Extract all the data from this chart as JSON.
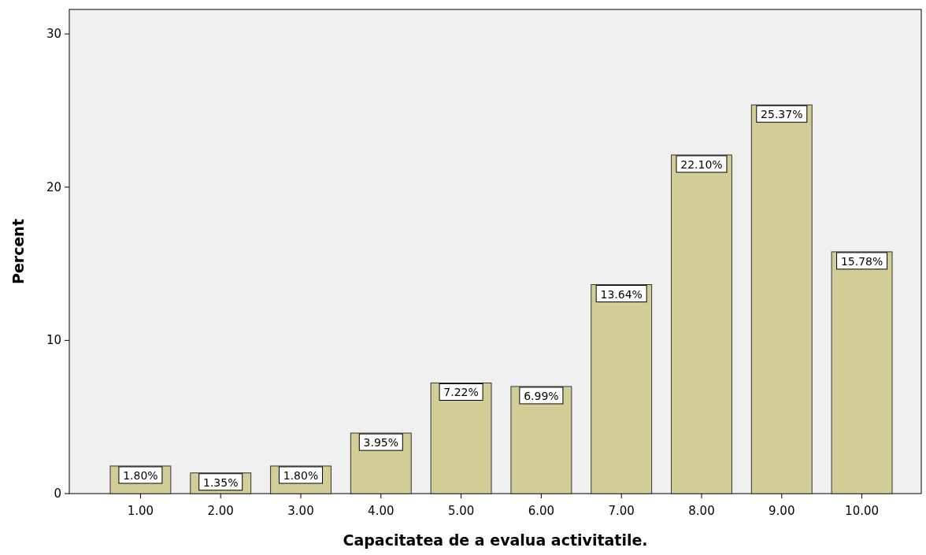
{
  "chart_data": {
    "type": "bar",
    "xlabel": "Capacitatea de a evalua activitatile.",
    "ylabel": "Percent",
    "categories": [
      "1.00",
      "2.00",
      "3.00",
      "4.00",
      "5.00",
      "6.00",
      "7.00",
      "8.00",
      "9.00",
      "10.00"
    ],
    "values": [
      1.8,
      1.35,
      1.8,
      3.95,
      7.22,
      6.99,
      13.64,
      22.1,
      25.37,
      15.78
    ],
    "value_labels": [
      "1.80%",
      "1.35%",
      "1.80%",
      "3.95%",
      "7.22%",
      "6.99%",
      "13.64%",
      "22.10%",
      "25.37%",
      "15.78%"
    ],
    "color": "#d3ce98",
    "ylim": [
      0,
      31.6
    ],
    "yticks": [
      0,
      10,
      20,
      30
    ],
    "grid": false
  }
}
